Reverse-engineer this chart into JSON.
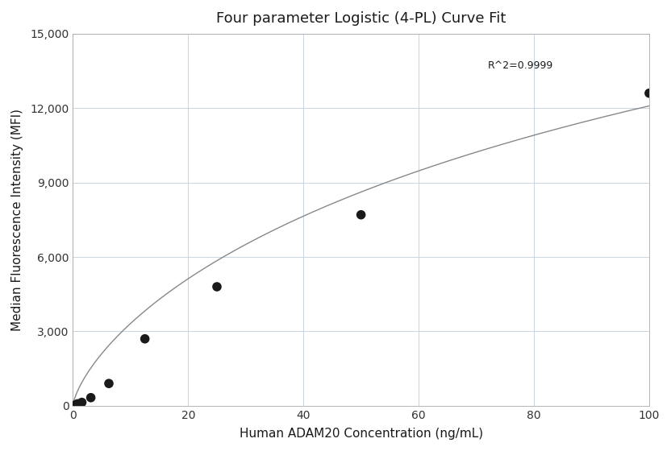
{
  "title": "Four parameter Logistic (4-PL) Curve Fit",
  "xlabel": "Human ADAM20 Concentration (ng/mL)",
  "ylabel": "Median Fluorescence Intensity (MFI)",
  "x_data": [
    0.4,
    0.78,
    1.56,
    3.12,
    6.25,
    12.5,
    25.0,
    50.0,
    100.0
  ],
  "y_data": [
    30,
    80,
    140,
    330,
    900,
    2700,
    4800,
    7700,
    12600
  ],
  "xlim": [
    0,
    100
  ],
  "ylim": [
    0,
    15000
  ],
  "r_squared": "R^2=0.9999",
  "bg_color": "#ffffff",
  "grid_color": "#c8d4e3",
  "line_color": "#888888",
  "dot_color": "#1a1a1a",
  "title_fontsize": 13,
  "label_fontsize": 11,
  "tick_fontsize": 10,
  "yticks": [
    0,
    3000,
    6000,
    9000,
    12000,
    15000
  ],
  "xticks": [
    0,
    20,
    40,
    60,
    80,
    100
  ],
  "4pl_A": 0.0,
  "4pl_B": 0.72,
  "4pl_C": 200.0,
  "4pl_D": 32000.0
}
